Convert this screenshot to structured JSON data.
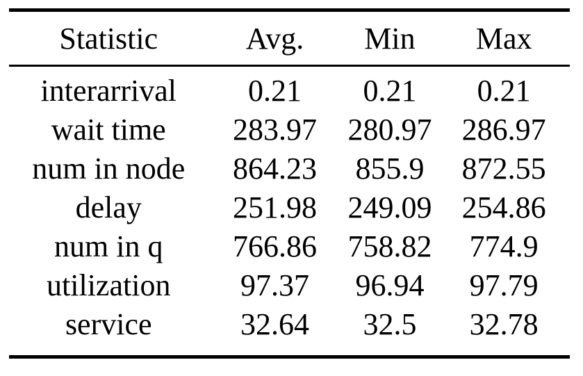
{
  "table": {
    "headers": [
      "Statistic",
      "Avg.",
      "Min",
      "Max"
    ],
    "rows": [
      [
        "interarrival",
        "0.21",
        "0.21",
        "0.21"
      ],
      [
        "wait time",
        "283.97",
        "280.97",
        "286.97"
      ],
      [
        "num in node",
        "864.23",
        "855.9",
        "872.55"
      ],
      [
        "delay",
        "251.98",
        "249.09",
        "254.86"
      ],
      [
        "num in q",
        "766.86",
        "758.82",
        "774.9"
      ],
      [
        "utilization",
        "97.37",
        "96.94",
        "97.79"
      ],
      [
        "service",
        "32.64",
        "32.5",
        "32.78"
      ]
    ],
    "colors": {
      "text": "#000000",
      "rule": "#000000",
      "background": "#ffffff"
    }
  },
  "chart_data": {
    "type": "table",
    "title": "",
    "columns": [
      "Statistic",
      "Avg.",
      "Min",
      "Max"
    ],
    "rows": [
      {
        "statistic": "interarrival",
        "avg": 0.21,
        "min": 0.21,
        "max": 0.21
      },
      {
        "statistic": "wait time",
        "avg": 283.97,
        "min": 280.97,
        "max": 286.97
      },
      {
        "statistic": "num in node",
        "avg": 864.23,
        "min": 855.9,
        "max": 872.55
      },
      {
        "statistic": "delay",
        "avg": 251.98,
        "min": 249.09,
        "max": 254.86
      },
      {
        "statistic": "num in q",
        "avg": 766.86,
        "min": 758.82,
        "max": 774.9
      },
      {
        "statistic": "utilization",
        "avg": 97.37,
        "min": 96.94,
        "max": 97.79
      },
      {
        "statistic": "service",
        "avg": 32.64,
        "min": 32.5,
        "max": 32.78
      }
    ]
  }
}
